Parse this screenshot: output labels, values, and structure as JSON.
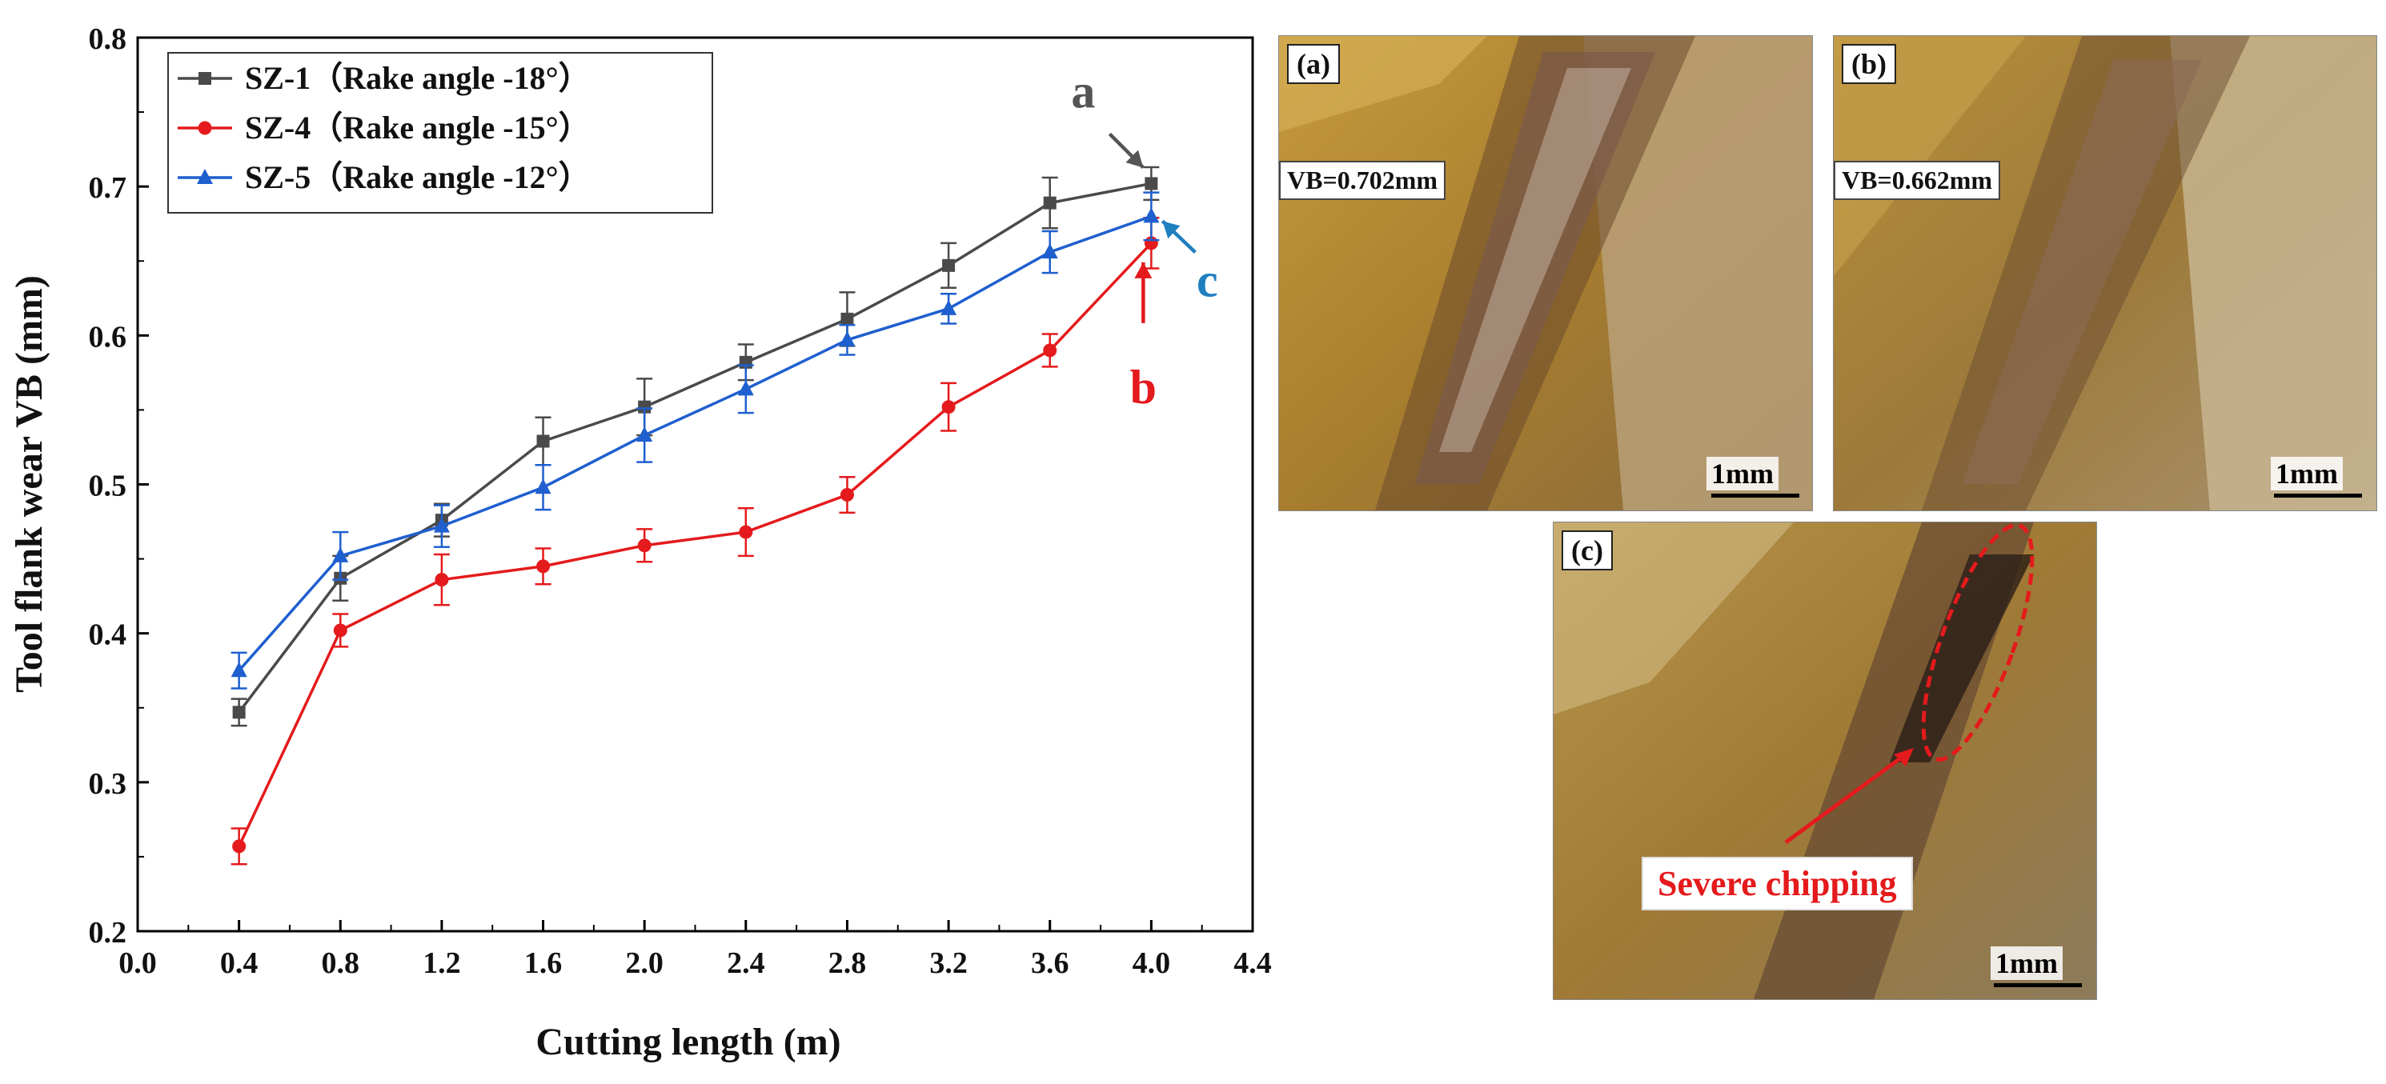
{
  "chart_data": {
    "type": "line",
    "xlabel": "Cutting length (m)",
    "ylabel": "Tool flank wear VB (mm)",
    "xlim": [
      0.0,
      4.4
    ],
    "ylim": [
      0.2,
      0.8
    ],
    "xticks": [
      "0.0",
      "0.4",
      "0.8",
      "1.2",
      "1.6",
      "2.0",
      "2.4",
      "2.8",
      "3.2",
      "3.6",
      "4.0",
      "4.4"
    ],
    "yticks": [
      "0.2",
      "0.3",
      "0.4",
      "0.5",
      "0.6",
      "0.7",
      "0.8"
    ],
    "x": [
      0.4,
      0.8,
      1.2,
      1.6,
      2.0,
      2.4,
      2.8,
      3.2,
      3.6,
      4.0
    ],
    "legend_position": "top-left",
    "series": [
      {
        "name": "SZ-1（Rake angle -18°）",
        "color": "#4a4a4a",
        "marker": "square",
        "values": [
          0.347,
          0.437,
          0.476,
          0.529,
          0.552,
          0.582,
          0.611,
          0.647,
          0.689,
          0.702
        ],
        "errors": [
          0.009,
          0.015,
          0.011,
          0.016,
          0.019,
          0.012,
          0.018,
          0.015,
          0.017,
          0.011
        ]
      },
      {
        "name": "SZ-4（Rake angle -15°）",
        "color": "#e41a1c",
        "marker": "circle",
        "values": [
          0.257,
          0.402,
          0.436,
          0.445,
          0.459,
          0.468,
          0.493,
          0.552,
          0.59,
          0.662
        ],
        "errors": [
          0.012,
          0.011,
          0.017,
          0.012,
          0.011,
          0.016,
          0.012,
          0.016,
          0.011,
          0.017
        ]
      },
      {
        "name": "SZ-5（Rake angle -12°）",
        "color": "#1f5fcf",
        "marker": "triangle",
        "values": [
          0.375,
          0.452,
          0.472,
          0.498,
          0.533,
          0.564,
          0.597,
          0.618,
          0.656,
          0.68
        ],
        "errors": [
          0.012,
          0.016,
          0.014,
          0.015,
          0.018,
          0.016,
          0.01,
          0.01,
          0.014,
          0.016
        ]
      }
    ],
    "annotations": [
      {
        "text": "a",
        "color": "#555555",
        "points_to": {
          "series": 0,
          "x": 4.0
        }
      },
      {
        "text": "b",
        "color": "#e41a1c",
        "points_to": {
          "series": 1,
          "x": 4.0
        }
      },
      {
        "text": "c",
        "color": "#1f7fbf",
        "points_to": {
          "series": 2,
          "x": 4.0
        }
      }
    ]
  },
  "photos": {
    "a": {
      "label": "(a)",
      "vb": "VB=0.702mm",
      "scale": "1mm"
    },
    "b": {
      "label": "(b)",
      "vb": "VB=0.662mm",
      "scale": "1mm"
    },
    "c": {
      "label": "(c)",
      "note": "Severe chipping",
      "scale": "1mm"
    }
  }
}
